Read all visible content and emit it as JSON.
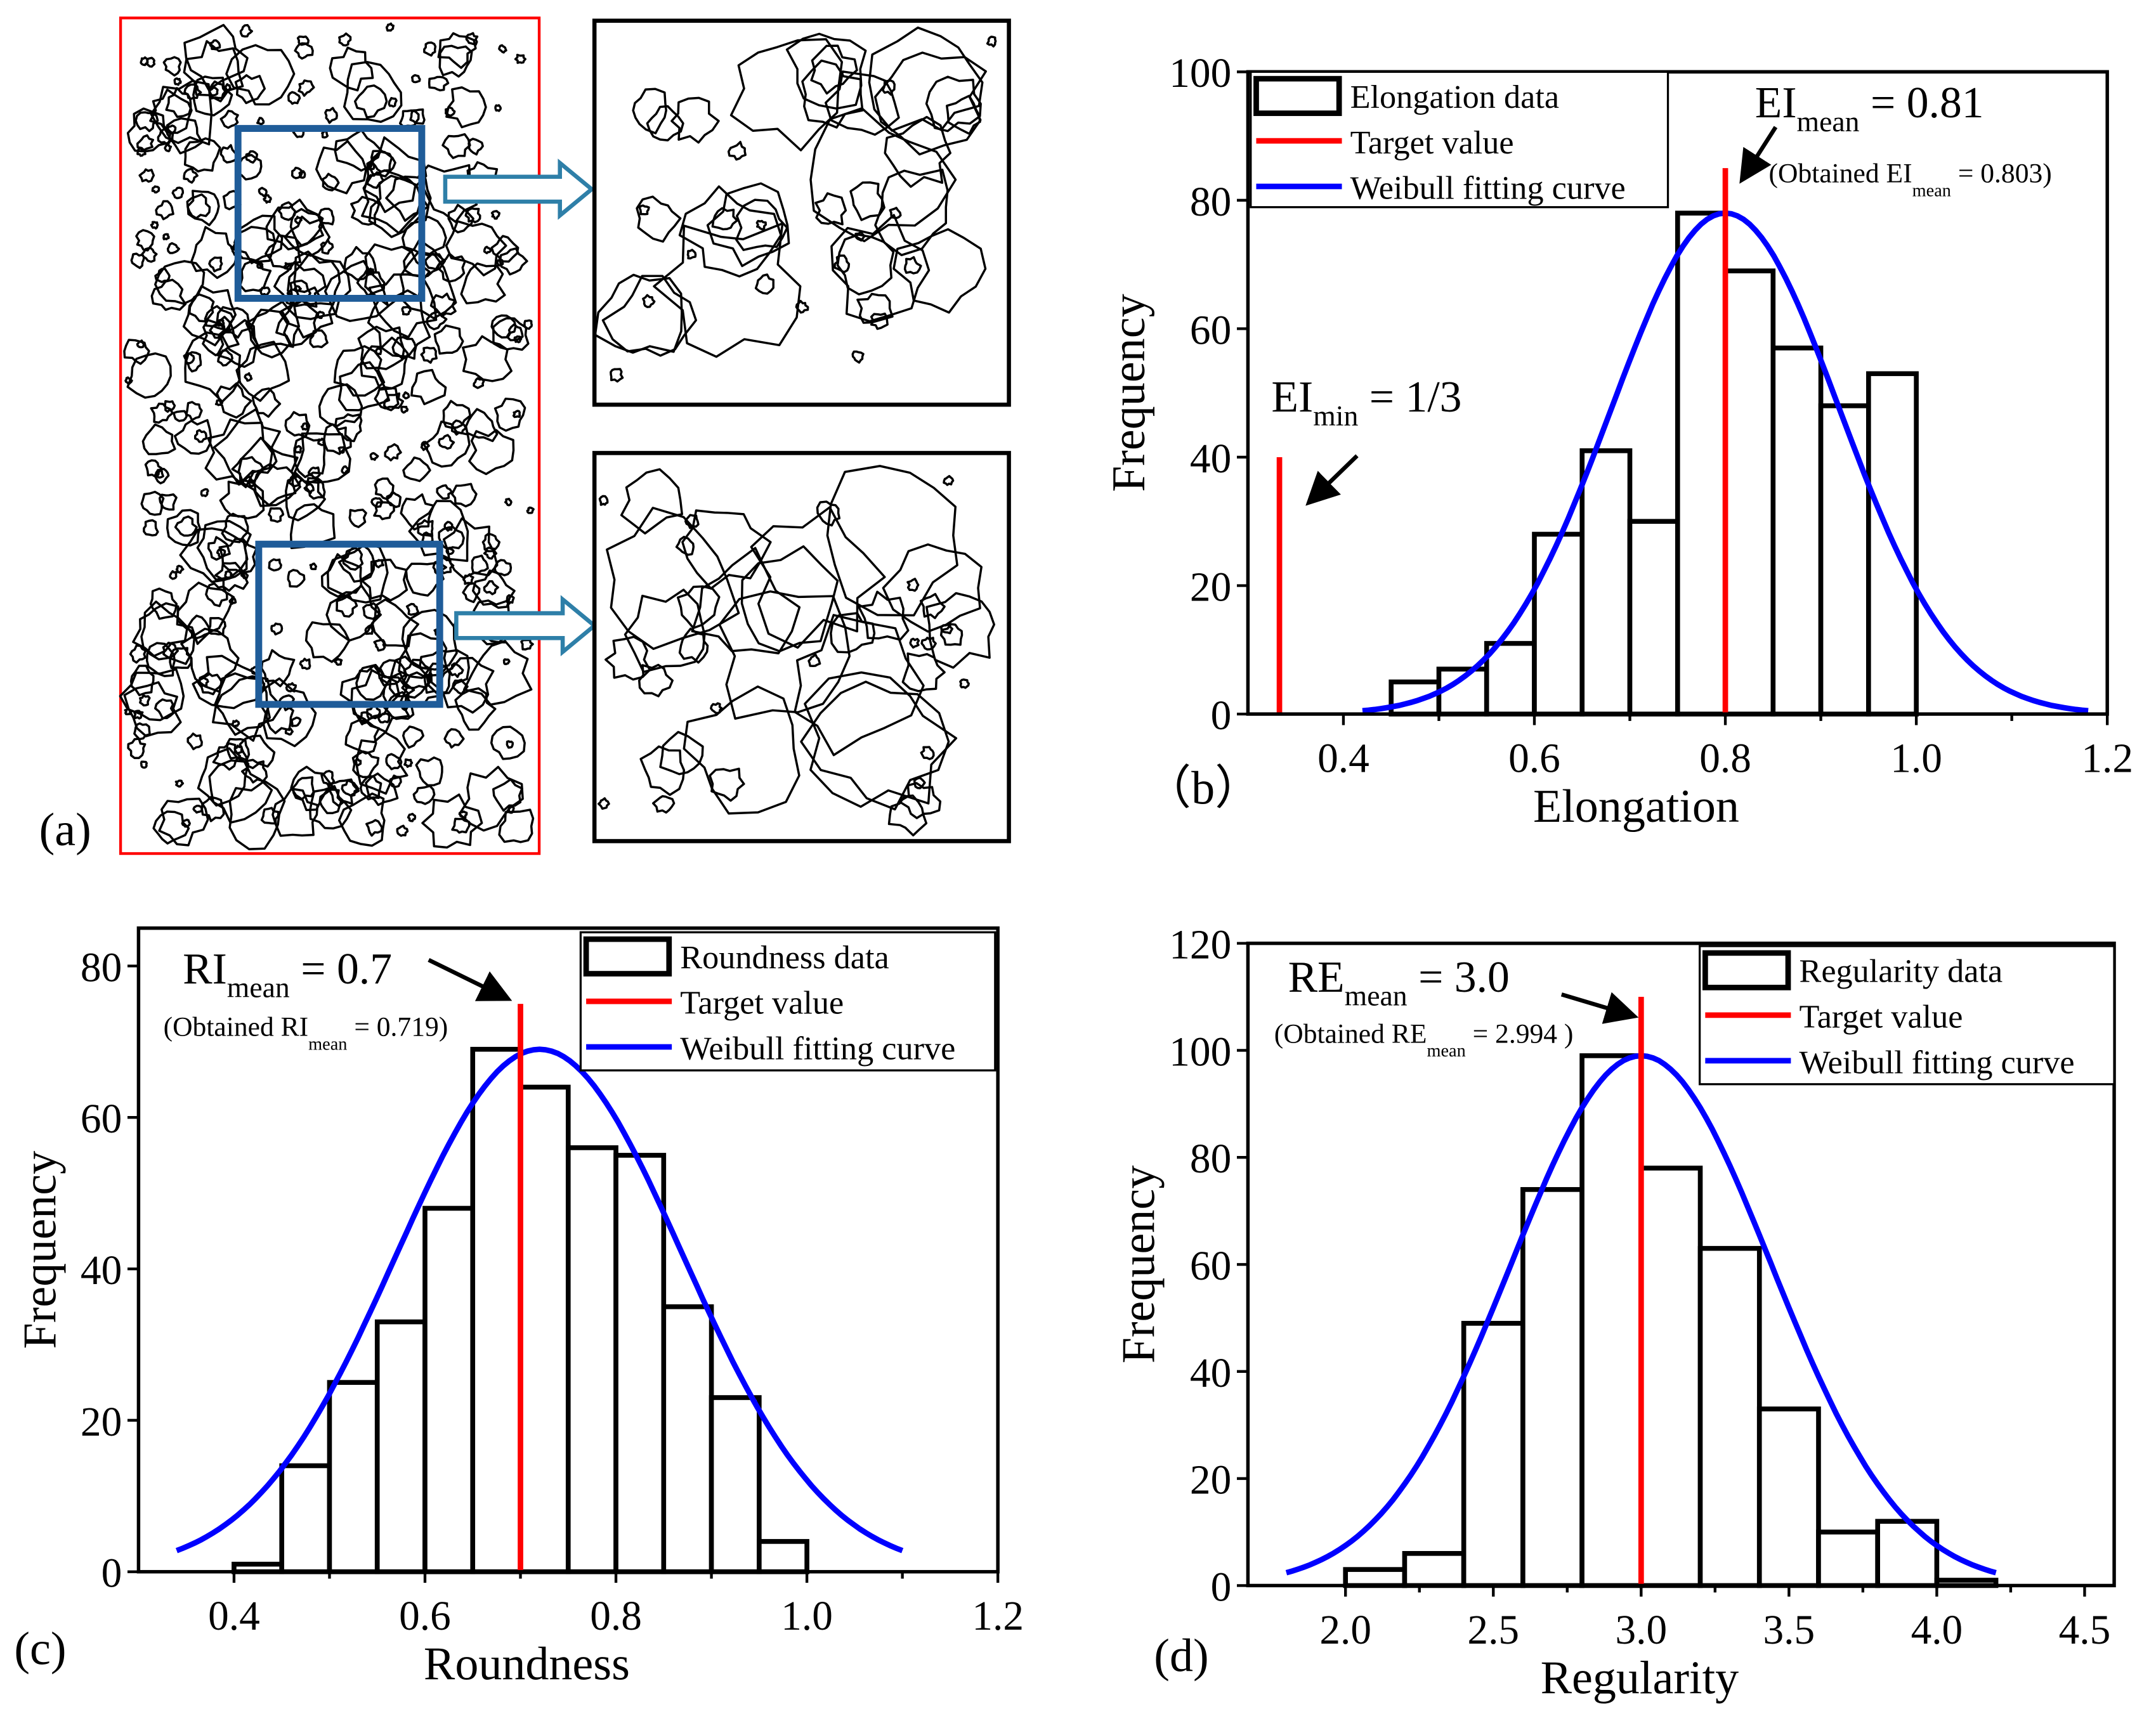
{
  "panel_a": {
    "label": "(a)",
    "colors": {
      "frame": "#ff0000",
      "zoom_box": "#1f5c99",
      "arrow": "#2e7fa8",
      "particles": "#000000"
    }
  },
  "chart_data": [
    {
      "id": "b",
      "panel_label": "（b）",
      "type": "bar",
      "title": "",
      "xlabel": "Elongation",
      "ylabel": "Frequency",
      "xlim": [
        0.3,
        1.2
      ],
      "ylim": [
        0,
        100
      ],
      "xticks": [
        "0.4",
        "0.6",
        "0.8",
        "1.0",
        "1.2"
      ],
      "xtick_values": [
        0.4,
        0.6,
        0.8,
        1.0,
        1.2
      ],
      "yticks": [
        "0",
        "20",
        "40",
        "60",
        "80",
        "100"
      ],
      "ytick_values": [
        0,
        20,
        40,
        60,
        80,
        100
      ],
      "bin_width": 0.05,
      "bin_starts": [
        0.45,
        0.5,
        0.55,
        0.6,
        0.65,
        0.7,
        0.75,
        0.8,
        0.85,
        0.9,
        0.95
      ],
      "values": [
        5,
        7,
        11,
        28,
        41,
        30,
        78,
        69,
        57,
        48,
        53
      ],
      "target_lines": [
        {
          "x": 0.8,
          "top": 85
        },
        {
          "x": 0.333,
          "top": 40
        }
      ],
      "curve": {
        "x_range": [
          0.42,
          1.18
        ],
        "peak_x": 0.8,
        "peak_y": 78,
        "sigma": 0.12
      },
      "legend": [
        "Elongation data",
        "Target value",
        "Weibull fitting curve"
      ],
      "legend_placement": "top-left",
      "annotations": {
        "mean_main": "EI",
        "mean_sub": "mean",
        "mean_value": " = 0.81",
        "obtained_pre": "(Obtained EI",
        "obtained_sub": "mean",
        "obtained_post": " = 0.803)",
        "min_main": "EI",
        "min_sub": "min",
        "min_value": " = 1/3"
      }
    },
    {
      "id": "c",
      "panel_label": "(c)",
      "type": "bar",
      "title": "",
      "xlabel": "Roundness",
      "ylabel": "Frequency",
      "xlim": [
        0.3,
        1.2
      ],
      "ylim": [
        0,
        85
      ],
      "xticks": [
        "0.4",
        "0.6",
        "0.8",
        "1.0",
        "1.2"
      ],
      "xtick_values": [
        0.4,
        0.6,
        0.8,
        1.0,
        1.2
      ],
      "yticks": [
        "0",
        "20",
        "40",
        "60",
        "80"
      ],
      "ytick_values": [
        0,
        20,
        40,
        60,
        80
      ],
      "bin_width": 0.05,
      "bin_starts": [
        0.4,
        0.45,
        0.5,
        0.55,
        0.6,
        0.65,
        0.7,
        0.75,
        0.8,
        0.85,
        0.9,
        0.95
      ],
      "values": [
        1,
        14,
        25,
        33,
        48,
        69,
        64,
        56,
        55,
        35,
        23,
        4
      ],
      "target_lines": [
        {
          "x": 0.7,
          "top": 75
        }
      ],
      "curve": {
        "x_range": [
          0.34,
          1.1
        ],
        "peak_x": 0.72,
        "peak_y": 69,
        "sigma": 0.15
      },
      "legend": [
        "Roundness data",
        "Target value",
        "Weibull fitting curve"
      ],
      "legend_placement": "top-right",
      "annotations": {
        "mean_main": "RI",
        "mean_sub": "mean",
        "mean_value": " = 0.7",
        "obtained_pre": "(Obtained RI",
        "obtained_sub": "mean",
        "obtained_post": " = 0.719)"
      }
    },
    {
      "id": "d",
      "panel_label": "(d)",
      "type": "bar",
      "title": "",
      "xlabel": "Regularity",
      "ylabel": "Frequency",
      "xlim": [
        1.67,
        4.6
      ],
      "ylim": [
        0,
        120
      ],
      "xticks": [
        "2.0",
        "2.5",
        "3.0",
        "3.5",
        "4.0",
        "4.5"
      ],
      "xtick_values": [
        2.0,
        2.5,
        3.0,
        3.5,
        4.0,
        4.5
      ],
      "yticks": [
        "0",
        "20",
        "40",
        "60",
        "80",
        "100",
        "120"
      ],
      "ytick_values": [
        0,
        20,
        40,
        60,
        80,
        100,
        120
      ],
      "bin_width": 0.2,
      "bin_starts": [
        2.0,
        2.2,
        2.4,
        2.6,
        2.8,
        3.0,
        3.2,
        3.4,
        3.6,
        3.8,
        4.0
      ],
      "values": [
        3,
        6,
        49,
        74,
        99,
        78,
        63,
        33,
        10,
        12,
        1
      ],
      "target_lines": [
        {
          "x": 3.0,
          "top": 110
        }
      ],
      "curve": {
        "x_range": [
          1.8,
          4.2
        ],
        "peak_x": 3.0,
        "peak_y": 99,
        "sigma": 0.44
      },
      "legend": [
        "Regularity data",
        "Target value",
        "Weibull fitting curve"
      ],
      "legend_placement": "top-right",
      "annotations": {
        "mean_main": "RE",
        "mean_sub": "mean",
        "mean_value": " = 3.0",
        "obtained_pre": "(Obtained RE",
        "obtained_sub": "mean",
        "obtained_post": " = 2.994 )"
      }
    }
  ],
  "colors": {
    "bars": "#000000",
    "target": "#ff0000",
    "curve": "#0000ff"
  }
}
